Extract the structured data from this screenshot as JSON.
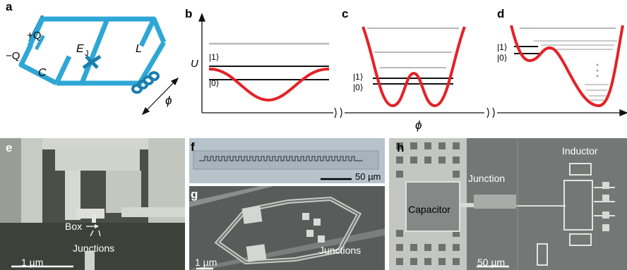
{
  "panel_labels": {
    "a": "a",
    "b": "b",
    "c": "c",
    "d": "d",
    "e": "e",
    "f": "f",
    "g": "g",
    "h": "h"
  },
  "circuit": {
    "plus_q": "+Q",
    "minus_q": "−Q",
    "capacitor": "C",
    "ej": "E",
    "ej_sub": "J",
    "inductor": "L",
    "phi": "ϕ",
    "wire_color": "#2fa7d6"
  },
  "energy_axes": {
    "ylabel": "U",
    "xlabel": "ϕ"
  },
  "state_labels": {
    "one": "|1⟩",
    "zero": "|0⟩"
  },
  "colors": {
    "potential": "#e32226",
    "levels": "#b8b8b8",
    "states": "#111111"
  },
  "micrographs": {
    "e": {
      "box": "Box",
      "junctions": "Junctions",
      "scale": "1 µm"
    },
    "f": {
      "scale": "50 µm"
    },
    "g": {
      "junctions": "Junctions",
      "scale": "1 µm"
    },
    "h": {
      "junction": "Junction",
      "capacitor": "Capacitor",
      "inductor": "Inductor",
      "scale": "50 µm"
    }
  }
}
